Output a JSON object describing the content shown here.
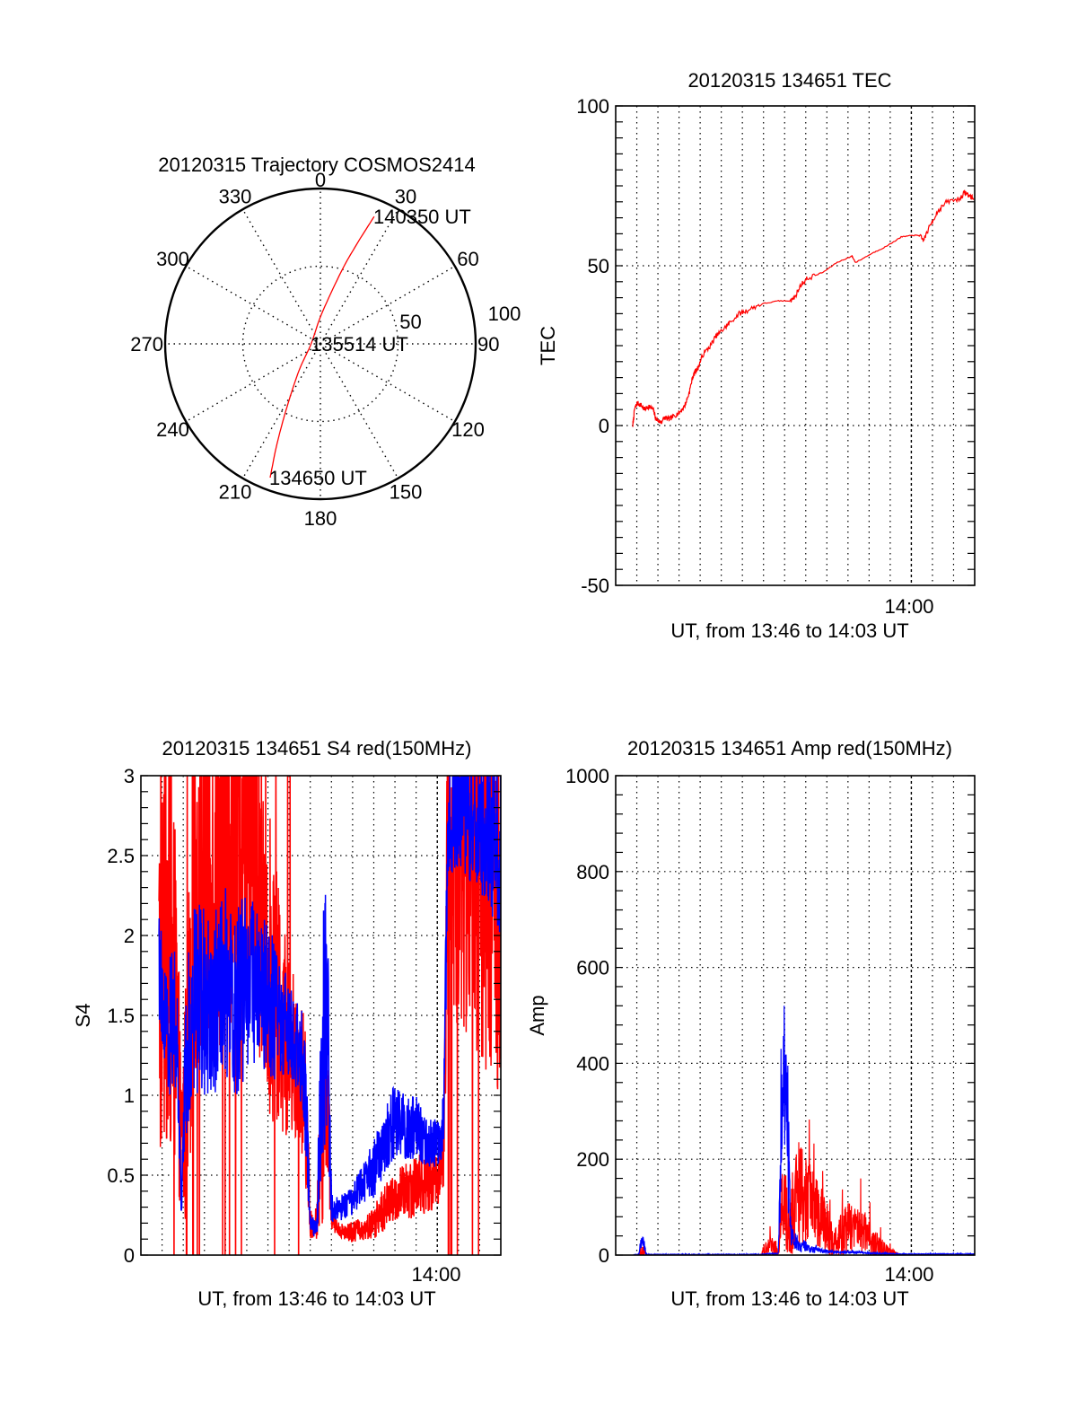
{
  "chart_data": [
    {
      "type": "polar",
      "title": "20120315 Trajectory COSMOS2414",
      "azimuth_labels": [
        "0",
        "30",
        "60",
        "90",
        "120",
        "150",
        "180",
        "210",
        "240",
        "270",
        "300",
        "330"
      ],
      "azimuths": [
        0,
        30,
        60,
        90,
        120,
        150,
        180,
        210,
        240,
        270,
        300,
        330
      ],
      "radial_labels": [
        "50",
        "100"
      ],
      "radial_values": [
        50,
        100
      ],
      "rlim": [
        0,
        100
      ],
      "series": [
        {
          "name": "trajectory",
          "color": "#ff0000",
          "points": [
            {
              "az": 200.6,
              "r": 92
            },
            {
              "az": 203.5,
              "r": 70
            },
            {
              "az": 207.9,
              "r": 46
            },
            {
              "az": 218.7,
              "r": 22
            },
            {
              "az": 270,
              "r": 6
            },
            {
              "az": 2,
              "r": 19
            },
            {
              "az": 16,
              "r": 48
            },
            {
              "az": 20,
              "r": 68
            },
            {
              "az": 22.9,
              "r": 89
            }
          ]
        }
      ],
      "annotations": [
        {
          "text": "134650 UT",
          "at": "start"
        },
        {
          "text": "135514 UT",
          "at": "middle"
        },
        {
          "text": "140350 UT",
          "at": "end"
        }
      ]
    },
    {
      "type": "line",
      "title": "20120315 134651 TEC",
      "xlabel": "UT, from 13:46 to 14:03 UT",
      "ylabel": "TEC",
      "x_unit": "minutes since 13:46 UT",
      "xlim": [
        0,
        17
      ],
      "ylim": [
        -50,
        100
      ],
      "yticks": [
        -50,
        0,
        50,
        100
      ],
      "ytick_labels": [
        "-50",
        "0",
        "50",
        "100"
      ],
      "xtick_labels": [
        {
          "value": 14,
          "label": "14:00"
        }
      ],
      "grid": true,
      "series": [
        {
          "name": "TEC",
          "color": "#ff0000",
          "x": [
            0.81,
            0.89,
            1.02,
            1.19,
            1.36,
            1.57,
            1.78,
            1.91,
            2.12,
            2.33,
            2.54,
            2.75,
            3.01,
            3.26,
            3.47,
            3.64,
            3.77,
            3.9,
            4.11,
            4.49,
            4.75,
            5.08,
            5.38,
            5.85,
            6.23,
            6.87,
            7.71,
            8.22,
            8.47,
            8.77,
            9.07,
            9.83,
            10.47,
            11.19,
            11.36,
            12.17,
            12.8,
            13.52,
            14.07,
            14.36,
            14.58,
            14.92,
            15.25,
            15.68,
            16.31,
            16.52,
            16.73,
            16.95
          ],
          "y": [
            0,
            5,
            7,
            6.5,
            5,
            6,
            5,
            2,
            1,
            2.5,
            2,
            3,
            4,
            6,
            10,
            15,
            17,
            18,
            22,
            25,
            28,
            30,
            32,
            35,
            36,
            38,
            39,
            39,
            40,
            44,
            46,
            48,
            51,
            53,
            51,
            54,
            56,
            59,
            59.5,
            59.5,
            58,
            63,
            67,
            70,
            71,
            73,
            72,
            71
          ]
        }
      ]
    },
    {
      "type": "line",
      "title": "20120315 134651 S4 red(150MHz)",
      "xlabel": "UT, from 13:46 to 14:03 UT",
      "ylabel": "S4",
      "x_unit": "minutes since 13:46 UT",
      "xlim": [
        0,
        17
      ],
      "ylim": [
        0,
        3
      ],
      "yticks": [
        0,
        0.5,
        1,
        1.5,
        2,
        2.5,
        3
      ],
      "ytick_labels": [
        "0",
        "0.5",
        "1",
        "1.5",
        "2",
        "2.5",
        "3"
      ],
      "xtick_labels": [
        {
          "value": 14,
          "label": "14:00"
        }
      ],
      "grid": true,
      "envelope_x": [
        0.85,
        1.1,
        1.3,
        1.5,
        1.7,
        1.9,
        2.1,
        2.5,
        3.0,
        3.5,
        4.0,
        4.5,
        5.0,
        5.5,
        6.0,
        6.5,
        7.0,
        7.5,
        7.8,
        8.0,
        8.3,
        8.6,
        8.8,
        9.0,
        9.2,
        9.5,
        10.0,
        10.5,
        11.0,
        11.5,
        12.0,
        12.5,
        13.0,
        13.5,
        14.0,
        14.3,
        14.5,
        14.8,
        15.2,
        15.6,
        16.0,
        16.5,
        17.0
      ],
      "series": [
        {
          "name": "S4 red",
          "color": "#ff0000",
          "mean": [
            1.7,
            1.9,
            2.0,
            1.8,
            1.4,
            0.7,
            0.9,
            2.2,
            2.4,
            2.3,
            2.6,
            2.5,
            2.6,
            2.4,
            1.9,
            1.5,
            1.3,
            1.2,
            0.9,
            0.2,
            0.2,
            0.9,
            1.1,
            0.25,
            0.18,
            0.15,
            0.15,
            0.16,
            0.2,
            0.3,
            0.35,
            0.4,
            0.45,
            0.45,
            0.5,
            0.6,
            2.5,
            2.6,
            2.7,
            2.5,
            2.4,
            2.4,
            2.3
          ],
          "spread": [
            1.2,
            1.3,
            1.3,
            1.2,
            1.0,
            0.4,
            0.8,
            1.2,
            1.2,
            1.2,
            1.1,
            1.1,
            1.1,
            1.1,
            1.0,
            0.8,
            0.6,
            0.5,
            0.5,
            0.1,
            0.1,
            0.7,
            0.6,
            0.1,
            0.05,
            0.05,
            0.07,
            0.07,
            0.1,
            0.15,
            0.15,
            0.2,
            0.2,
            0.2,
            0.2,
            0.2,
            1.2,
            1.3,
            1.3,
            1.3,
            1.3,
            1.3,
            1.3
          ],
          "dropout_rate": [
            0.35,
            0.35,
            0.3,
            0.3,
            0.2,
            0.1,
            0.25,
            0.2,
            0.25,
            0.3,
            0.3,
            0.25,
            0.25,
            0.2,
            0.15,
            0.1,
            0.05,
            0.05,
            0.05,
            0,
            0,
            0,
            0,
            0,
            0,
            0,
            0,
            0,
            0,
            0,
            0,
            0,
            0,
            0,
            0,
            0,
            0.3,
            0.35,
            0.35,
            0.35,
            0.35,
            0.3,
            0.3
          ]
        },
        {
          "name": "S4 blue",
          "color": "#0000ff",
          "mean": [
            1.8,
            1.5,
            1.4,
            1.5,
            1.4,
            0.3,
            1.2,
            1.6,
            1.6,
            1.6,
            1.7,
            1.6,
            1.7,
            1.7,
            1.6,
            1.5,
            1.4,
            1.3,
            1.0,
            0.2,
            0.15,
            1.4,
            1.5,
            0.3,
            0.28,
            0.3,
            0.35,
            0.45,
            0.55,
            0.7,
            0.85,
            0.8,
            0.8,
            0.7,
            0.7,
            0.8,
            2.6,
            2.8,
            2.8,
            2.7,
            2.7,
            2.6,
            2.6
          ],
          "spread": [
            0.4,
            0.3,
            0.4,
            0.5,
            0.5,
            0.1,
            0.5,
            0.6,
            0.6,
            0.6,
            0.6,
            0.6,
            0.6,
            0.5,
            0.5,
            0.4,
            0.3,
            0.3,
            0.4,
            0.08,
            0.05,
            0.8,
            0.8,
            0.1,
            0.08,
            0.08,
            0.1,
            0.12,
            0.2,
            0.2,
            0.25,
            0.2,
            0.2,
            0.15,
            0.15,
            0.2,
            0.5,
            0.4,
            0.4,
            0.4,
            0.4,
            0.5,
            0.6
          ],
          "dropout_rate": [
            0,
            0,
            0,
            0,
            0,
            0,
            0,
            0,
            0,
            0,
            0,
            0,
            0,
            0,
            0,
            0,
            0,
            0,
            0,
            0,
            0,
            0,
            0,
            0,
            0,
            0,
            0,
            0,
            0,
            0,
            0,
            0,
            0,
            0,
            0,
            0,
            0,
            0,
            0,
            0,
            0,
            0,
            0
          ]
        }
      ]
    },
    {
      "type": "line",
      "title": "20120315 134651 Amp red(150MHz)",
      "xlabel": "UT, from 13:46 to 14:03 UT",
      "ylabel": "Amp",
      "x_unit": "minutes since 13:46 UT",
      "xlim": [
        0,
        17
      ],
      "ylim": [
        0,
        1000
      ],
      "yticks": [
        0,
        200,
        400,
        600,
        800,
        1000
      ],
      "ytick_labels": [
        "0",
        "200",
        "400",
        "600",
        "800",
        "1000"
      ],
      "xtick_labels": [
        {
          "value": 14,
          "label": "14:00"
        }
      ],
      "grid": true,
      "envelope_x": [
        0.85,
        1.1,
        1.15,
        1.25,
        1.35,
        1.45,
        1.6,
        2.0,
        4.0,
        6.0,
        6.9,
        7.0,
        7.3,
        7.6,
        7.7,
        7.85,
        8.0,
        8.15,
        8.3,
        8.5,
        8.7,
        9.0,
        9.2,
        9.5,
        10.0,
        10.3,
        10.7,
        11.0,
        11.5,
        11.8,
        12.0,
        12.3,
        12.6,
        12.9,
        13.5,
        14.0,
        15.0,
        17.0
      ],
      "series": [
        {
          "name": "Amp red",
          "color": "#ff0000",
          "mean": [
            0,
            0,
            5,
            10,
            8,
            0,
            0,
            0,
            0,
            0,
            0,
            10,
            20,
            15,
            0,
            120,
            110,
            60,
            40,
            150,
            140,
            100,
            110,
            90,
            60,
            20,
            40,
            55,
            55,
            45,
            35,
            25,
            15,
            8,
            0,
            0,
            0,
            0
          ],
          "spread": [
            1,
            1,
            10,
            15,
            12,
            1,
            1,
            1,
            1,
            1,
            1,
            12,
            20,
            15,
            1,
            110,
            100,
            90,
            80,
            120,
            120,
            90,
            80,
            70,
            60,
            30,
            50,
            55,
            50,
            45,
            35,
            30,
            20,
            10,
            1,
            1,
            1,
            1
          ]
        },
        {
          "name": "Amp blue",
          "color": "#0000ff",
          "mean": [
            1,
            1,
            15,
            30,
            20,
            2,
            1,
            1,
            1,
            1,
            1,
            2,
            3,
            3,
            3,
            200,
            380,
            250,
            40,
            30,
            20,
            20,
            12,
            10,
            8,
            7,
            6,
            6,
            6,
            5,
            4,
            4,
            3,
            3,
            2,
            2,
            2,
            2
          ],
          "spread": [
            1,
            1,
            10,
            15,
            12,
            1,
            1,
            1,
            1,
            1,
            1,
            1,
            1,
            1,
            1,
            150,
            170,
            150,
            25,
            20,
            15,
            12,
            8,
            6,
            4,
            3,
            3,
            3,
            3,
            2,
            2,
            2,
            2,
            1,
            1,
            1,
            1,
            1
          ]
        }
      ]
    }
  ]
}
